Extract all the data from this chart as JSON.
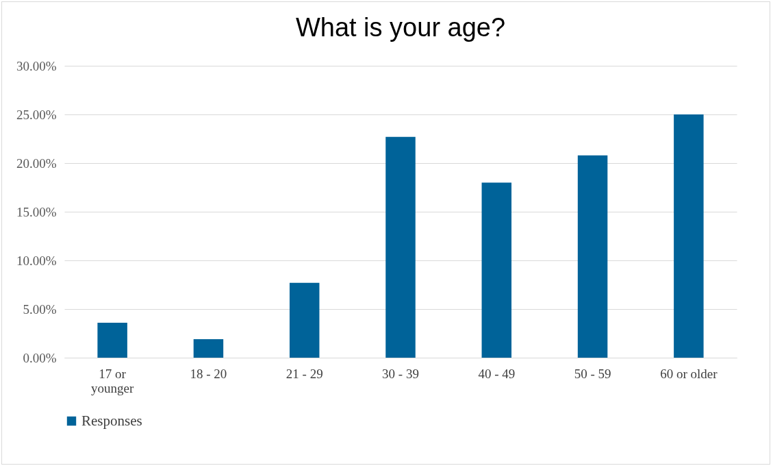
{
  "chart_data": {
    "type": "bar",
    "title": "What is your age?",
    "categories": [
      "17 or younger",
      "18 - 20",
      "21 - 29",
      "30 - 39",
      "40 - 49",
      "50 - 59",
      "60 or older"
    ],
    "series": [
      {
        "name": "Responses",
        "color": "#006399",
        "values": [
          3.6,
          1.9,
          7.7,
          22.7,
          18.0,
          20.8,
          25.0
        ]
      }
    ],
    "ylim": [
      0,
      30
    ],
    "yticks": [
      {
        "value": 0,
        "label": "0.00%"
      },
      {
        "value": 5,
        "label": "5.00%"
      },
      {
        "value": 10,
        "label": "10.00%"
      },
      {
        "value": 15,
        "label": "15.00%"
      },
      {
        "value": 20,
        "label": "20.00%"
      },
      {
        "value": 25,
        "label": "25.00%"
      },
      {
        "value": 30,
        "label": "30.00%"
      }
    ],
    "grid": "y",
    "legend": "bottom"
  }
}
